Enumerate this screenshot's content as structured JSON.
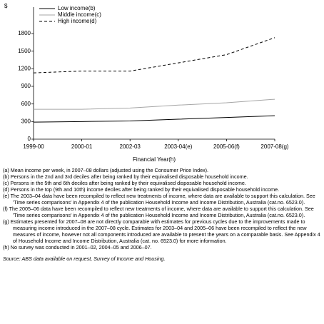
{
  "chart_data": {
    "type": "line",
    "y_label": "$",
    "x_label": "Financial Year(h)",
    "categories": [
      "1999-00",
      "2000-01",
      "2002-03",
      "2003-04(e)",
      "2005-06(f)",
      "2007-08(g)"
    ],
    "series": [
      {
        "name": "Low income(b)",
        "color": "#000000",
        "dashed": false,
        "values": [
          290,
          300,
          310,
          340,
          370,
          400
        ]
      },
      {
        "name": "Middle income(c)",
        "color": "#a6a6a6",
        "dashed": false,
        "values": [
          510,
          510,
          530,
          580,
          620,
          680
        ]
      },
      {
        "name": "High income(d)",
        "color": "#000000",
        "dashed": true,
        "values": [
          1130,
          1160,
          1160,
          1300,
          1440,
          1730
        ]
      }
    ],
    "ylim": [
      0,
      1800
    ],
    "yticks": [
      0,
      300,
      600,
      900,
      1200,
      1500,
      1800
    ],
    "grid": false,
    "legend": "top-left"
  },
  "footnotes": [
    "(a) Mean income per week, in 2007–08 dollars (adjusted using the Consumer Price Index).",
    "(b) Persons in the 2nd and 3rd deciles after being ranked by their equivalised disposable household income.",
    "(c) Persons in the 5th and 6th deciles after being ranked by their equivalised disposable household income.",
    "(d) Persons in the top (9th and 10th) income deciles after being ranked by their equivalised disposable household income.",
    "(e) The 2003–04 data have been recompiled to reflect new treatments of income, where data are available to support this calculation. See 'Time series comparisons' in Appendix 4 of the publication Household Income and Income Distribution, Australia (cat.no. 6523.0).",
    "(f) The 2005–06 data have been recompiled to reflect new treatments of income, where data are available to support this calculation. See 'Time series comparisons' in Appendix 4 of the publication Household Income and Income Distribution, Australia (cat.no. 6523.0).",
    "(g) Estimates presented for 2007–08 are not directly comparable with estimates for previous cycles due to the improvements made to measuring income introduced in the 2007–08 cycle. Estimates for 2003–04 and 2005–06 have been recompiled to reflect the new measures of income, however not all components introduced are available to present the years on a comparable basis. See Appendix 4 of Household Income and Income Distribution, Australia (cat. no. 6523.0) for more information.",
    "(h) No survey was conducted in 2001–02, 2004–05 and 2006–07."
  ],
  "source": "Source: ABS data available on request, Survey of Income and Housing."
}
